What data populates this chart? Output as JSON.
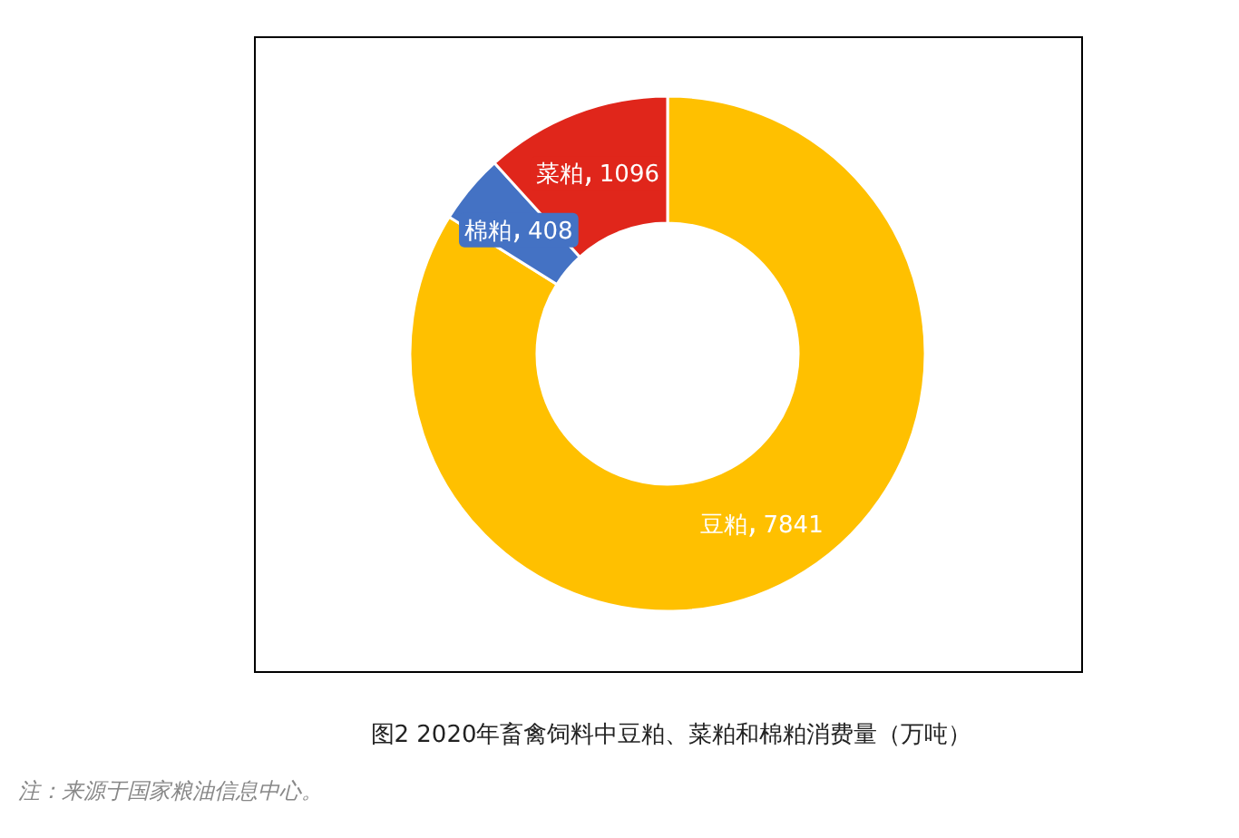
{
  "chart_data": {
    "type": "donut",
    "title": "图2 2020年畜禽饲料中豆粕、菜粕和棉粕消费量（万吨）",
    "annotations": [
      "注：来源于国家粮油信息中心。"
    ],
    "categories": [
      "豆粕",
      "棉粕",
      "菜粕"
    ],
    "values": [
      7841,
      408,
      1096
    ],
    "colors": [
      "#ffc000",
      "#4472c4",
      "#e0261b"
    ],
    "data_labels": true
  }
}
